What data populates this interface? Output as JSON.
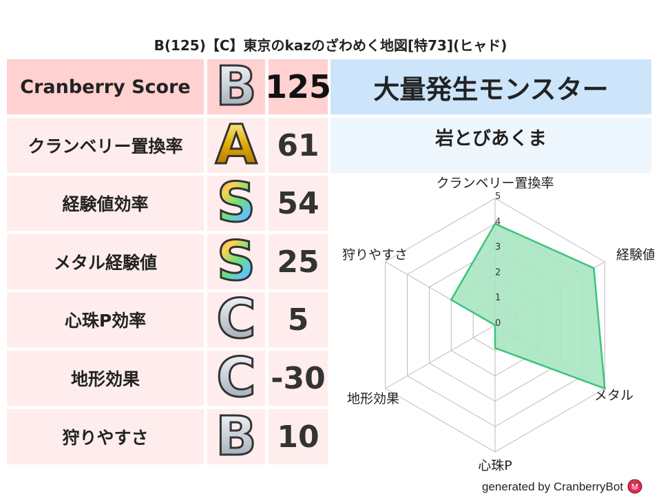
{
  "title": "B(125)【C】東京のkazのざわめく地図[特73](ヒャド)",
  "score_table": {
    "header": {
      "label": "Cranberry Score",
      "grade": "B",
      "value": "125"
    },
    "rows": [
      {
        "label": "クランベリー置換率",
        "grade": "A",
        "value": "61"
      },
      {
        "label": "経験値効率",
        "grade": "S",
        "value": "54"
      },
      {
        "label": "メタル経験値",
        "grade": "S",
        "value": "25"
      },
      {
        "label": "心珠P効率",
        "grade": "C",
        "value": "5"
      },
      {
        "label": "地形効果",
        "grade": "C",
        "value": "-30"
      },
      {
        "label": "狩りやすさ",
        "grade": "B",
        "value": "10"
      }
    ]
  },
  "right": {
    "heading": "大量発生モンスター",
    "monster": "岩とびあくま"
  },
  "chart_data": {
    "type": "radar",
    "axes": [
      "クランベリー置換率",
      "経験値",
      "メタル",
      "心珠P",
      "地形効果",
      "狩りやすさ"
    ],
    "values": [
      4,
      4.5,
      5,
      0.9,
      0,
      2
    ],
    "range": [
      0,
      5
    ],
    "ticks": [
      "0",
      "1",
      "2",
      "3",
      "4",
      "5"
    ],
    "fill_color": "#a8e6c2",
    "line_color": "#3cc37a",
    "grid": true
  },
  "footer": {
    "text": "generated by CranberryBot",
    "icon": "cranberry-mascot-icon"
  }
}
